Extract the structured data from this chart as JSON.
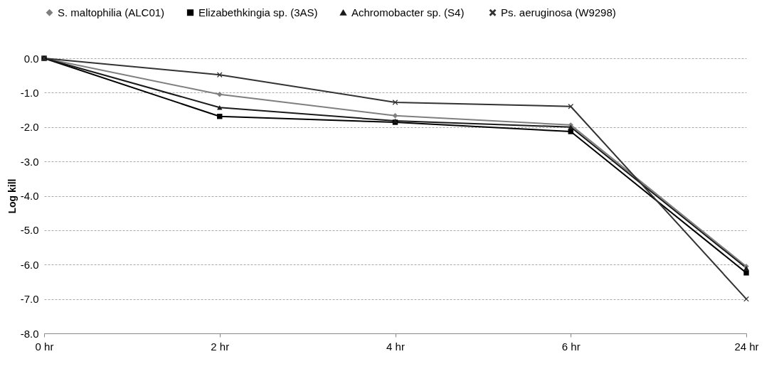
{
  "chart_data": {
    "type": "line",
    "ylabel": "Log kill",
    "categories": [
      "0 hr",
      "2 hr",
      "4 hr",
      "6 hr",
      "24 hr"
    ],
    "series": [
      {
        "name": "S. maltophilia (ALC01)",
        "color": "#7f7f7f",
        "marker": "diamond",
        "values": [
          0,
          -1.05,
          -1.67,
          -1.94,
          -6.05
        ]
      },
      {
        "name": "Elizabethkingia sp. (3AS)",
        "color": "#000000",
        "marker": "square",
        "values": [
          0,
          -1.69,
          -1.86,
          -2.13,
          -6.24
        ]
      },
      {
        "name": "Achromobacter sp.  (S4)",
        "color": "#1a1a1a",
        "marker": "triangle",
        "values": [
          0,
          -1.43,
          -1.82,
          -2.0,
          -6.1
        ]
      },
      {
        "name": "Ps. aeruginosa (W9298)",
        "color": "#333333",
        "marker": "cross",
        "values": [
          0,
          -0.48,
          -1.28,
          -1.4,
          -7.0
        ]
      }
    ],
    "ylim": [
      -8,
      0
    ],
    "yticks": [
      {
        "value": 0,
        "label": "0.0"
      },
      {
        "value": -1,
        "label": "-1.0"
      },
      {
        "value": -2,
        "label": "-2.0"
      },
      {
        "value": -3,
        "label": "-3.0"
      },
      {
        "value": -4,
        "label": "-4.0"
      },
      {
        "value": -5,
        "label": "-5.0"
      },
      {
        "value": -6,
        "label": "-6.0"
      },
      {
        "value": -7,
        "label": "-7.0"
      },
      {
        "value": -8,
        "label": "-8.0"
      }
    ],
    "grid": "y",
    "legend": "top",
    "line_style": "solid"
  }
}
